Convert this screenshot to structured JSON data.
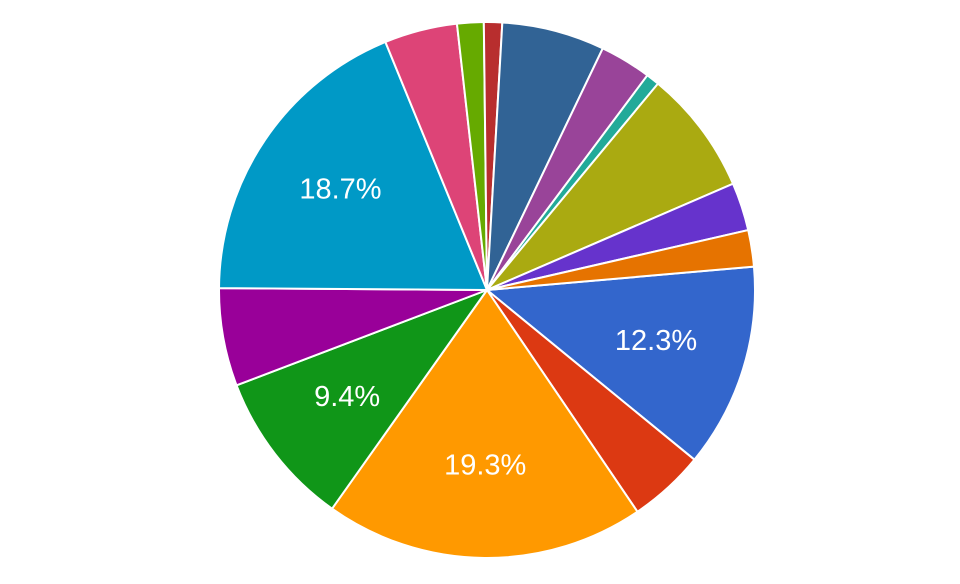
{
  "chart_data": {
    "type": "pie",
    "start_angle": 85,
    "values": [
      12.3,
      4.6,
      19.3,
      9.4,
      5.9,
      18.7,
      4.4,
      1.6,
      1.1,
      6.2,
      3.1,
      0.8,
      7.5,
      2.9,
      2.2
    ],
    "value_labels": [
      "12.3%",
      null,
      "19.3%",
      "9.4%",
      null,
      "18.7%",
      null,
      null,
      null,
      null,
      null,
      null,
      null,
      null,
      null
    ],
    "colors": [
      "#3366cc",
      "#dc3912",
      "#ff9900",
      "#109618",
      "#990099",
      "#0099c6",
      "#dd4477",
      "#66aa00",
      "#b82e2e",
      "#316395",
      "#994499",
      "#22aa99",
      "#aaaa11",
      "#6633cc",
      "#e67300"
    ]
  }
}
